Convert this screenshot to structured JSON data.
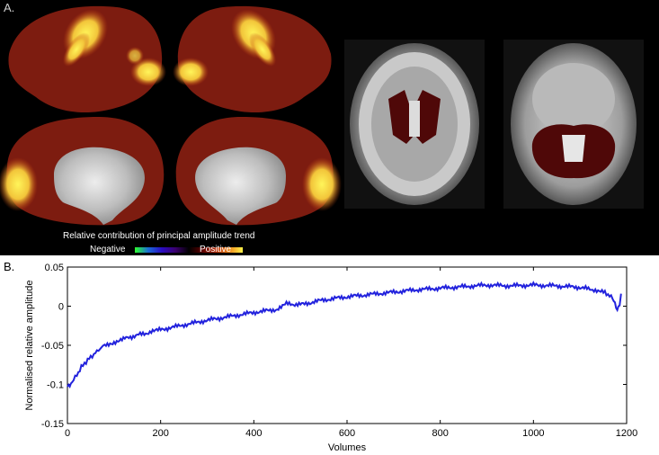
{
  "panel_a": {
    "label": "A.",
    "colorbar": {
      "title": "Relative contribution of principal amplitude trend",
      "negative_label": "Negative",
      "positive_label": "Positive",
      "negative_colors": [
        "#2cff2c",
        "#1a6bd6",
        "#2a0cc2",
        "#3b006e",
        "#000000"
      ],
      "positive_colors": [
        "#000000",
        "#5a0000",
        "#b42a06",
        "#f08a1c",
        "#fff44a"
      ]
    },
    "brain_colors": {
      "base": "#7a1b10",
      "hot": "#f7e24a",
      "mid": "#d9541a",
      "gray": "#bcbcbc",
      "roi": "#5a0a0a"
    }
  },
  "panel_b": {
    "label": "B.",
    "chart_data": {
      "type": "line",
      "title": "",
      "xlabel": "Volumes",
      "ylabel": "Normalised relative amplitude",
      "xlim": [
        0,
        1200
      ],
      "ylim": [
        -0.15,
        0.05
      ],
      "x_ticks": [
        0,
        200,
        400,
        600,
        800,
        1000,
        1200
      ],
      "y_ticks": [
        -0.15,
        -0.1,
        -0.05,
        0,
        0.05
      ],
      "x_tick_labels": [
        "0",
        "200",
        "400",
        "600",
        "800",
        "1000",
        "1200"
      ],
      "y_tick_labels": [
        "-0.15",
        "-0.1",
        "-0.05",
        "0",
        "0.05"
      ],
      "grid": false,
      "line_color": "#2222dd",
      "series": [
        {
          "x": [
            0,
            5,
            10,
            20,
            30,
            40,
            50,
            60,
            70,
            80,
            100,
            120,
            150,
            180,
            200,
            250,
            300,
            350,
            400,
            450,
            470,
            500,
            550,
            600,
            650,
            700,
            750,
            800,
            850,
            900,
            950,
            1000,
            1050,
            1100,
            1130,
            1150,
            1160,
            1170,
            1175,
            1180,
            1185,
            1188
          ],
          "y": [
            -0.104,
            -0.101,
            -0.097,
            -0.088,
            -0.078,
            -0.071,
            -0.065,
            -0.06,
            -0.054,
            -0.05,
            -0.046,
            -0.042,
            -0.037,
            -0.033,
            -0.03,
            -0.024,
            -0.018,
            -0.013,
            -0.008,
            -0.004,
            0.003,
            0.002,
            0.008,
            0.012,
            0.015,
            0.018,
            0.021,
            0.023,
            0.025,
            0.027,
            0.026,
            0.027,
            0.026,
            0.024,
            0.021,
            0.018,
            0.015,
            0.01,
            0.002,
            -0.006,
            0.003,
            0.016
          ]
        }
      ]
    }
  }
}
